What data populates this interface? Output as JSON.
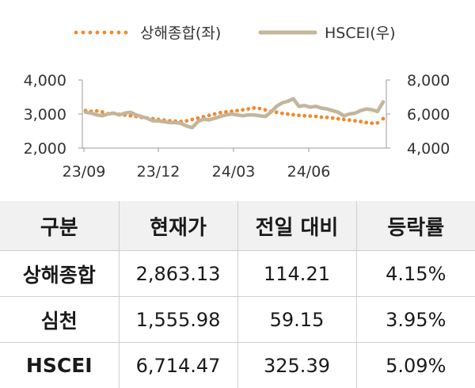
{
  "chart_data": {
    "type": "line",
    "legend_position": "top",
    "x_ticks": [
      "23/09",
      "23/12",
      "24/03",
      "24/06"
    ],
    "y_left": {
      "ticks": [
        "2,000",
        "3,000",
        "4,000"
      ],
      "range": [
        2000,
        4000
      ]
    },
    "y_right": {
      "ticks": [
        "4,000",
        "6,000",
        "8,000"
      ],
      "range": [
        4000,
        8000
      ]
    },
    "grid": false,
    "series": [
      {
        "name": "상해종합(좌)",
        "axis": "left",
        "style": "dotted",
        "color": "#f08a2e",
        "values": [
          3100,
          3080,
          3090,
          3060,
          3010,
          3020,
          2990,
          2970,
          2950,
          2930,
          2900,
          2880,
          2860,
          2840,
          2820,
          2800,
          2790,
          2780,
          2800,
          2840,
          2880,
          2920,
          2960,
          3000,
          3040,
          3060,
          3080,
          3100,
          3120,
          3150,
          3180,
          3160,
          3120,
          3080,
          3050,
          3020,
          3000,
          2980,
          2960,
          2950,
          2940,
          2930,
          2910,
          2900,
          2880,
          2860,
          2840,
          2820,
          2800,
          2780,
          2750,
          2730,
          2740,
          2863
        ]
      },
      {
        "name": "HSCEI(우)",
        "axis": "right",
        "style": "solid",
        "color": "#c4b59b",
        "values": [
          6100,
          6050,
          5950,
          5900,
          6000,
          6050,
          5950,
          6050,
          6100,
          5950,
          5850,
          5750,
          5600,
          5600,
          5550,
          5500,
          5500,
          5450,
          5300,
          5200,
          5550,
          5700,
          5650,
          5750,
          5850,
          5950,
          6000,
          5950,
          5900,
          5950,
          5950,
          5900,
          5850,
          6100,
          6450,
          6650,
          6750,
          6900,
          6450,
          6500,
          6400,
          6450,
          6350,
          6300,
          6200,
          6100,
          5900,
          6000,
          6050,
          6200,
          6300,
          6250,
          6150,
          6714
        ]
      }
    ]
  },
  "table": {
    "headers": [
      "구분",
      "현재가",
      "전일 대비",
      "등락률"
    ],
    "rows": [
      {
        "name": "상해종합",
        "price": "2,863.13",
        "change": "114.21",
        "rate": "4.15%"
      },
      {
        "name": "심천",
        "price": "1,555.98",
        "change": "59.15",
        "rate": "3.95%"
      },
      {
        "name": "HSCEI",
        "price": "6,714.47",
        "change": "325.39",
        "rate": "5.09%"
      }
    ]
  }
}
